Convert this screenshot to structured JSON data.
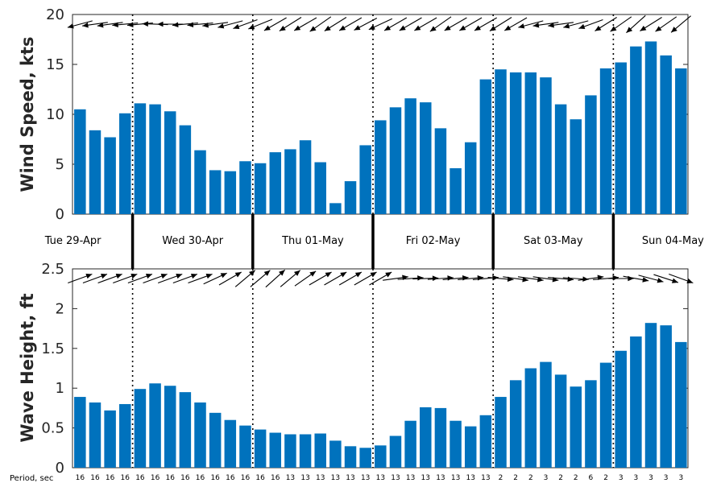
{
  "chart_data": [
    {
      "type": "bar",
      "ylabel": "Wind Speed, kts",
      "ylim": [
        0,
        20
      ],
      "yticks": [
        "0",
        "5",
        "10",
        "15",
        "20"
      ],
      "color": "#0072BD",
      "values": [
        10.5,
        8.4,
        7.7,
        10.1,
        11.1,
        11.0,
        10.3,
        8.9,
        6.4,
        4.4,
        4.3,
        5.3,
        5.1,
        6.2,
        6.5,
        7.4,
        5.2,
        1.1,
        3.3,
        6.9,
        9.4,
        10.7,
        11.6,
        11.2,
        8.6,
        4.6,
        7.2,
        13.5,
        14.5,
        14.2,
        14.2,
        13.7,
        11.0,
        9.5,
        11.9,
        14.6,
        15.2,
        16.8,
        17.3,
        15.9,
        14.6
      ],
      "direction_arrows_deg": [
        165,
        172,
        172,
        175,
        175,
        182,
        180,
        175,
        175,
        172,
        165,
        160,
        158,
        150,
        148,
        150,
        145,
        148,
        150,
        152,
        155,
        150,
        150,
        150,
        145,
        150,
        150,
        150,
        148,
        150,
        165,
        172,
        172,
        165,
        160,
        148,
        145,
        138,
        148,
        145,
        140
      ]
    },
    {
      "type": "bar",
      "ylabel": "Wave Height, ft",
      "ylim": [
        0,
        2.5
      ],
      "yticks": [
        "0",
        "0.5",
        "1",
        "1.5",
        "2",
        "2.5"
      ],
      "color": "#0072BD",
      "values": [
        0.89,
        0.82,
        0.72,
        0.8,
        0.99,
        1.06,
        1.03,
        0.95,
        0.82,
        0.69,
        0.6,
        0.53,
        0.48,
        0.44,
        0.42,
        0.42,
        0.43,
        0.34,
        0.27,
        0.25,
        0.28,
        0.4,
        0.59,
        0.76,
        0.75,
        0.59,
        0.52,
        0.66,
        0.89,
        1.1,
        1.25,
        1.33,
        1.17,
        1.02,
        1.1,
        1.32,
        1.47,
        1.65,
        1.82,
        1.79,
        1.58
      ],
      "direction_arrows_deg": [
        -20,
        -20,
        -20,
        -20,
        -20,
        -20,
        -20,
        -20,
        -20,
        -25,
        -30,
        -40,
        -40,
        -42,
        -40,
        -35,
        -30,
        -30,
        -30,
        -30,
        -30,
        -8,
        -4,
        -2,
        -4,
        -5,
        -5,
        -5,
        5,
        8,
        8,
        8,
        5,
        4,
        -8,
        -5,
        0,
        10,
        15,
        18,
        20
      ],
      "periods_label": "Period, sec",
      "periods": [
        "16",
        "16",
        "16",
        "16",
        "16",
        "16",
        "16",
        "16",
        "16",
        "16",
        "16",
        "16",
        "16",
        "16",
        "13",
        "13",
        "13",
        "13",
        "13",
        "13",
        "13",
        "13",
        "13",
        "13",
        "13",
        "13",
        "13",
        "13",
        "2",
        "2",
        "2",
        "3",
        "2",
        "2",
        "6",
        "2",
        "3",
        "3",
        "3",
        "3",
        "3"
      ]
    }
  ],
  "days": [
    "Tue 29-Apr",
    "Wed 30-Apr",
    "Thu 01-May",
    "Fri 02-May",
    "Sat 03-May",
    "Sun 04-May"
  ]
}
